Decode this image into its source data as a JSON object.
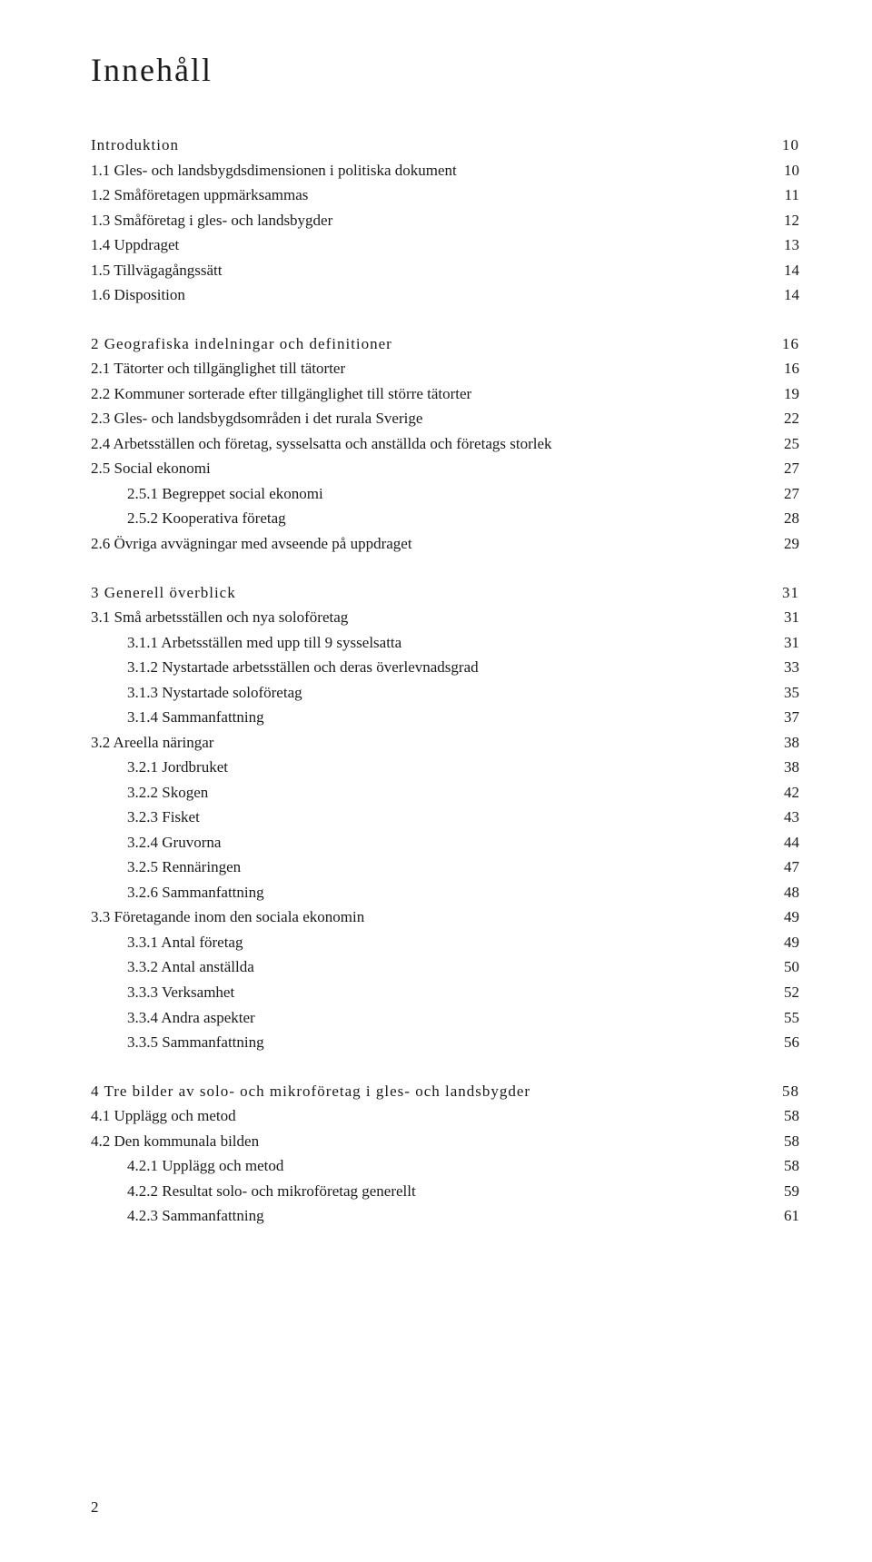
{
  "title": "Innehåll",
  "page_number": "2",
  "toc": [
    {
      "heading": {
        "label": "Introduktion",
        "page": "10"
      },
      "subs": [
        {
          "label": "1.1 Gles- och landsbygdsdimensionen i politiska dokument",
          "page": "10"
        },
        {
          "label": "1.2 Småföretagen uppmärksammas",
          "page": "11"
        },
        {
          "label": "1.3 Småföretag i gles- och landsbygder",
          "page": "12"
        },
        {
          "label": "1.4 Uppdraget",
          "page": "13"
        },
        {
          "label": "1.5 Tillvägagångssätt",
          "page": "14"
        },
        {
          "label": "1.6 Disposition",
          "page": "14"
        }
      ]
    },
    {
      "heading": {
        "label": "2   Geografiska indelningar och definitioner",
        "page": "16"
      },
      "subs": [
        {
          "label": "2.1 Tätorter och tillgänglighet till tätorter",
          "page": "16"
        },
        {
          "label": "2.2 Kommuner sorterade efter tillgänglighet till större tätorter",
          "page": "19"
        },
        {
          "label": "2.3 Gles- och landsbygdsområden i det rurala Sverige",
          "page": "22"
        },
        {
          "label": "2.4 Arbetsställen och företag, sysselsatta och anställda och företags storlek",
          "page": "25"
        },
        {
          "label": "2.5 Social ekonomi",
          "page": "27"
        },
        {
          "label": "2.5.1   Begreppet social ekonomi",
          "page": "27",
          "indent": true
        },
        {
          "label": "2.5.2   Kooperativa företag",
          "page": "28",
          "indent": true
        },
        {
          "label": "2.6 Övriga avvägningar med avseende på uppdraget",
          "page": "29"
        }
      ]
    },
    {
      "heading": {
        "label": "3   Generell överblick",
        "page": "31"
      },
      "subs": [
        {
          "label": "3.1 Små arbetsställen och nya soloföretag",
          "page": "31"
        },
        {
          "label": "3.1.1   Arbetsställen med upp till 9 sysselsatta",
          "page": "31",
          "indent": true
        },
        {
          "label": "3.1.2   Nystartade arbetsställen och deras överlevnadsgrad",
          "page": "33",
          "indent": true
        },
        {
          "label": "3.1.3   Nystartade soloföretag",
          "page": "35",
          "indent": true
        },
        {
          "label": "3.1.4   Sammanfattning",
          "page": "37",
          "indent": true
        },
        {
          "label": "3.2 Areella näringar",
          "page": "38"
        },
        {
          "label": "3.2.1   Jordbruket",
          "page": "38",
          "indent": true
        },
        {
          "label": "3.2.2   Skogen",
          "page": "42",
          "indent": true
        },
        {
          "label": "3.2.3   Fisket",
          "page": "43",
          "indent": true
        },
        {
          "label": "3.2.4   Gruvorna",
          "page": "44",
          "indent": true
        },
        {
          "label": "3.2.5   Rennäringen",
          "page": "47",
          "indent": true
        },
        {
          "label": "3.2.6   Sammanfattning",
          "page": "48",
          "indent": true
        },
        {
          "label": "3.3 Företagande inom den sociala ekonomin",
          "page": "49"
        },
        {
          "label": "3.3.1   Antal företag",
          "page": "49",
          "indent": true
        },
        {
          "label": "3.3.2   Antal anställda",
          "page": "50",
          "indent": true
        },
        {
          "label": "3.3.3   Verksamhet",
          "page": "52",
          "indent": true
        },
        {
          "label": "3.3.4   Andra aspekter",
          "page": "55",
          "indent": true
        },
        {
          "label": "3.3.5   Sammanfattning",
          "page": "56",
          "indent": true
        }
      ]
    },
    {
      "heading": {
        "label": "4   Tre bilder av solo- och mikroföretag i gles- och landsbygder",
        "page": "58"
      },
      "subs": [
        {
          "label": "4.1 Upplägg och metod",
          "page": "58"
        },
        {
          "label": "4.2 Den kommunala bilden",
          "page": "58"
        },
        {
          "label": "4.2.1   Upplägg och metod",
          "page": "58",
          "indent": true
        },
        {
          "label": "4.2.2   Resultat solo- och mikroföretag generellt",
          "page": "59",
          "indent": true
        },
        {
          "label": "4.2.3   Sammanfattning",
          "page": "61",
          "indent": true
        }
      ]
    }
  ]
}
